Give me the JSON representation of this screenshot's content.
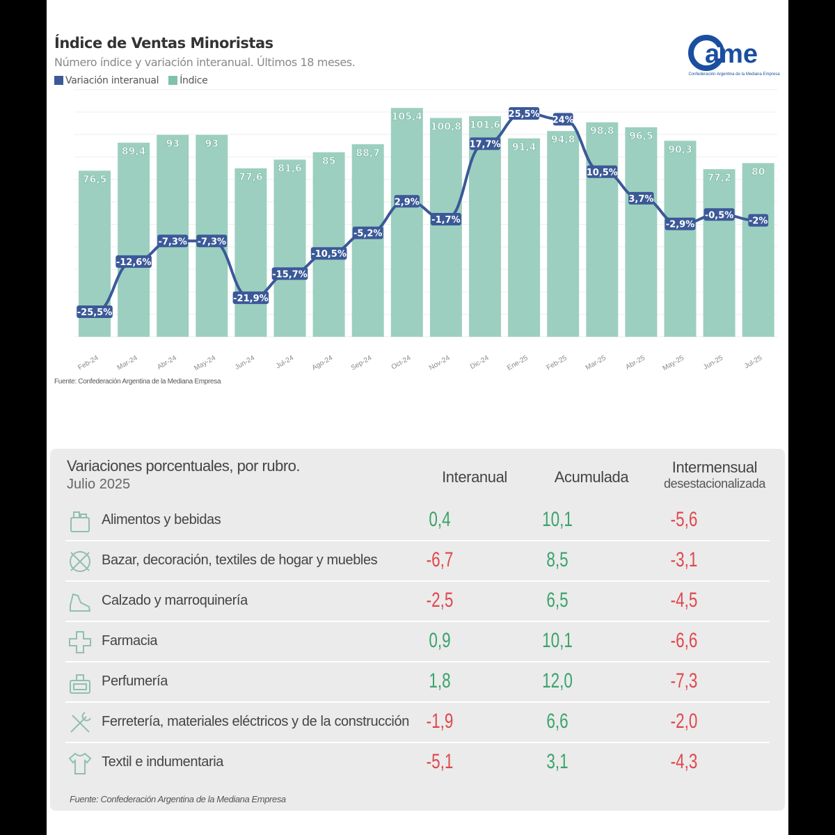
{
  "header": {
    "title": "Índice de Ventas Minoristas",
    "subtitle": "Número índice y variación interanual. Últimos 18 meses.",
    "logo_text": "came",
    "logo_caption": "Confederación Argentina de la Mediana Empresa"
  },
  "chart_data": {
    "type": "bar+line",
    "title": "Índice de Ventas Minoristas",
    "categories": [
      "Feb-24",
      "Mar-24",
      "Abr-24",
      "May-24",
      "Jun-24",
      "Jul-24",
      "Ago-24",
      "Sep-24",
      "Oct-24",
      "Nov-24",
      "Dic-24",
      "Ene-25",
      "Feb-25",
      "Mar-25",
      "Abr-25",
      "May-25",
      "Jun-25",
      "Jul-25"
    ],
    "series": [
      {
        "name": "Índice",
        "type": "bar",
        "color": "#9ccfbf",
        "values": [
          76.5,
          89.4,
          93,
          93,
          77.6,
          81.6,
          85,
          88.7,
          105.4,
          100.8,
          101.6,
          91.4,
          94.8,
          98.8,
          96.5,
          90.3,
          77.2,
          80
        ],
        "labels": [
          "76,5",
          "89,4",
          "93",
          "93",
          "77,6",
          "81,6",
          "85",
          "88,7",
          "105,4",
          "100,8",
          "101,6",
          "91,4",
          "94,8",
          "98,8",
          "96,5",
          "90,3",
          "77,2",
          "80"
        ]
      },
      {
        "name": "Variación interanual",
        "type": "line",
        "color": "#3b5998",
        "values": [
          -25.5,
          -12.6,
          -7.3,
          -7.3,
          -21.9,
          -15.7,
          -10.5,
          -5.2,
          2.9,
          -1.7,
          17.7,
          25.5,
          24,
          10.5,
          3.7,
          -2.9,
          -0.5,
          -2
        ],
        "labels": [
          "-25,5%",
          "-12,6%",
          "-7,3%",
          "-7,3%",
          "-21,9%",
          "-15,7%",
          "-10,5%",
          "-5,2%",
          "2,9%",
          "-1,7%",
          "17,7%",
          "25,5%",
          "24%",
          "10,5%",
          "3,7%",
          "-2,9%",
          "-0,5%",
          "-2%"
        ]
      }
    ],
    "legend": [
      "Variación interanual",
      "Índice"
    ],
    "legend_position": "top-left",
    "grid": true,
    "source": "Fuente: Confederación Argentina de la Mediana Empresa"
  },
  "table": {
    "title": "Variaciones porcentuales, por rubro.",
    "subtitle": "Julio 2025",
    "columns": [
      "Interanual",
      "Acumulada",
      "Intermensual"
    ],
    "column3_sub": "desestacionalizada",
    "rows": [
      {
        "icon": "grocery-icon",
        "label": "Alimentos y bebidas",
        "values": [
          "0,4",
          "10,1",
          "-5,6"
        ]
      },
      {
        "icon": "home-decor-icon",
        "label": "Bazar, decoración, textiles de hogar y muebles",
        "values": [
          "-6,7",
          "8,5",
          "-3,1"
        ]
      },
      {
        "icon": "shoe-icon",
        "label": "Calzado y marroquinería",
        "values": [
          "-2,5",
          "6,5",
          "-4,5"
        ]
      },
      {
        "icon": "pharmacy-cross-icon",
        "label": "Farmacia",
        "values": [
          "0,9",
          "10,1",
          "-6,6"
        ]
      },
      {
        "icon": "perfume-icon",
        "label": "Perfumería",
        "values": [
          "1,8",
          "12,0",
          "-7,3"
        ]
      },
      {
        "icon": "tools-icon",
        "label": "Ferretería, materiales eléctricos y de la construcción",
        "values": [
          "-1,9",
          "6,6",
          "-2,0"
        ]
      },
      {
        "icon": "shirt-icon",
        "label": "Textil e indumentaria",
        "values": [
          "-5,1",
          "3,1",
          "-4,3"
        ]
      }
    ],
    "source": "Fuente: Confederación Argentina de la Mediana Empresa",
    "colors": {
      "positive": "#3aa36a",
      "negative": "#e0474c"
    }
  }
}
